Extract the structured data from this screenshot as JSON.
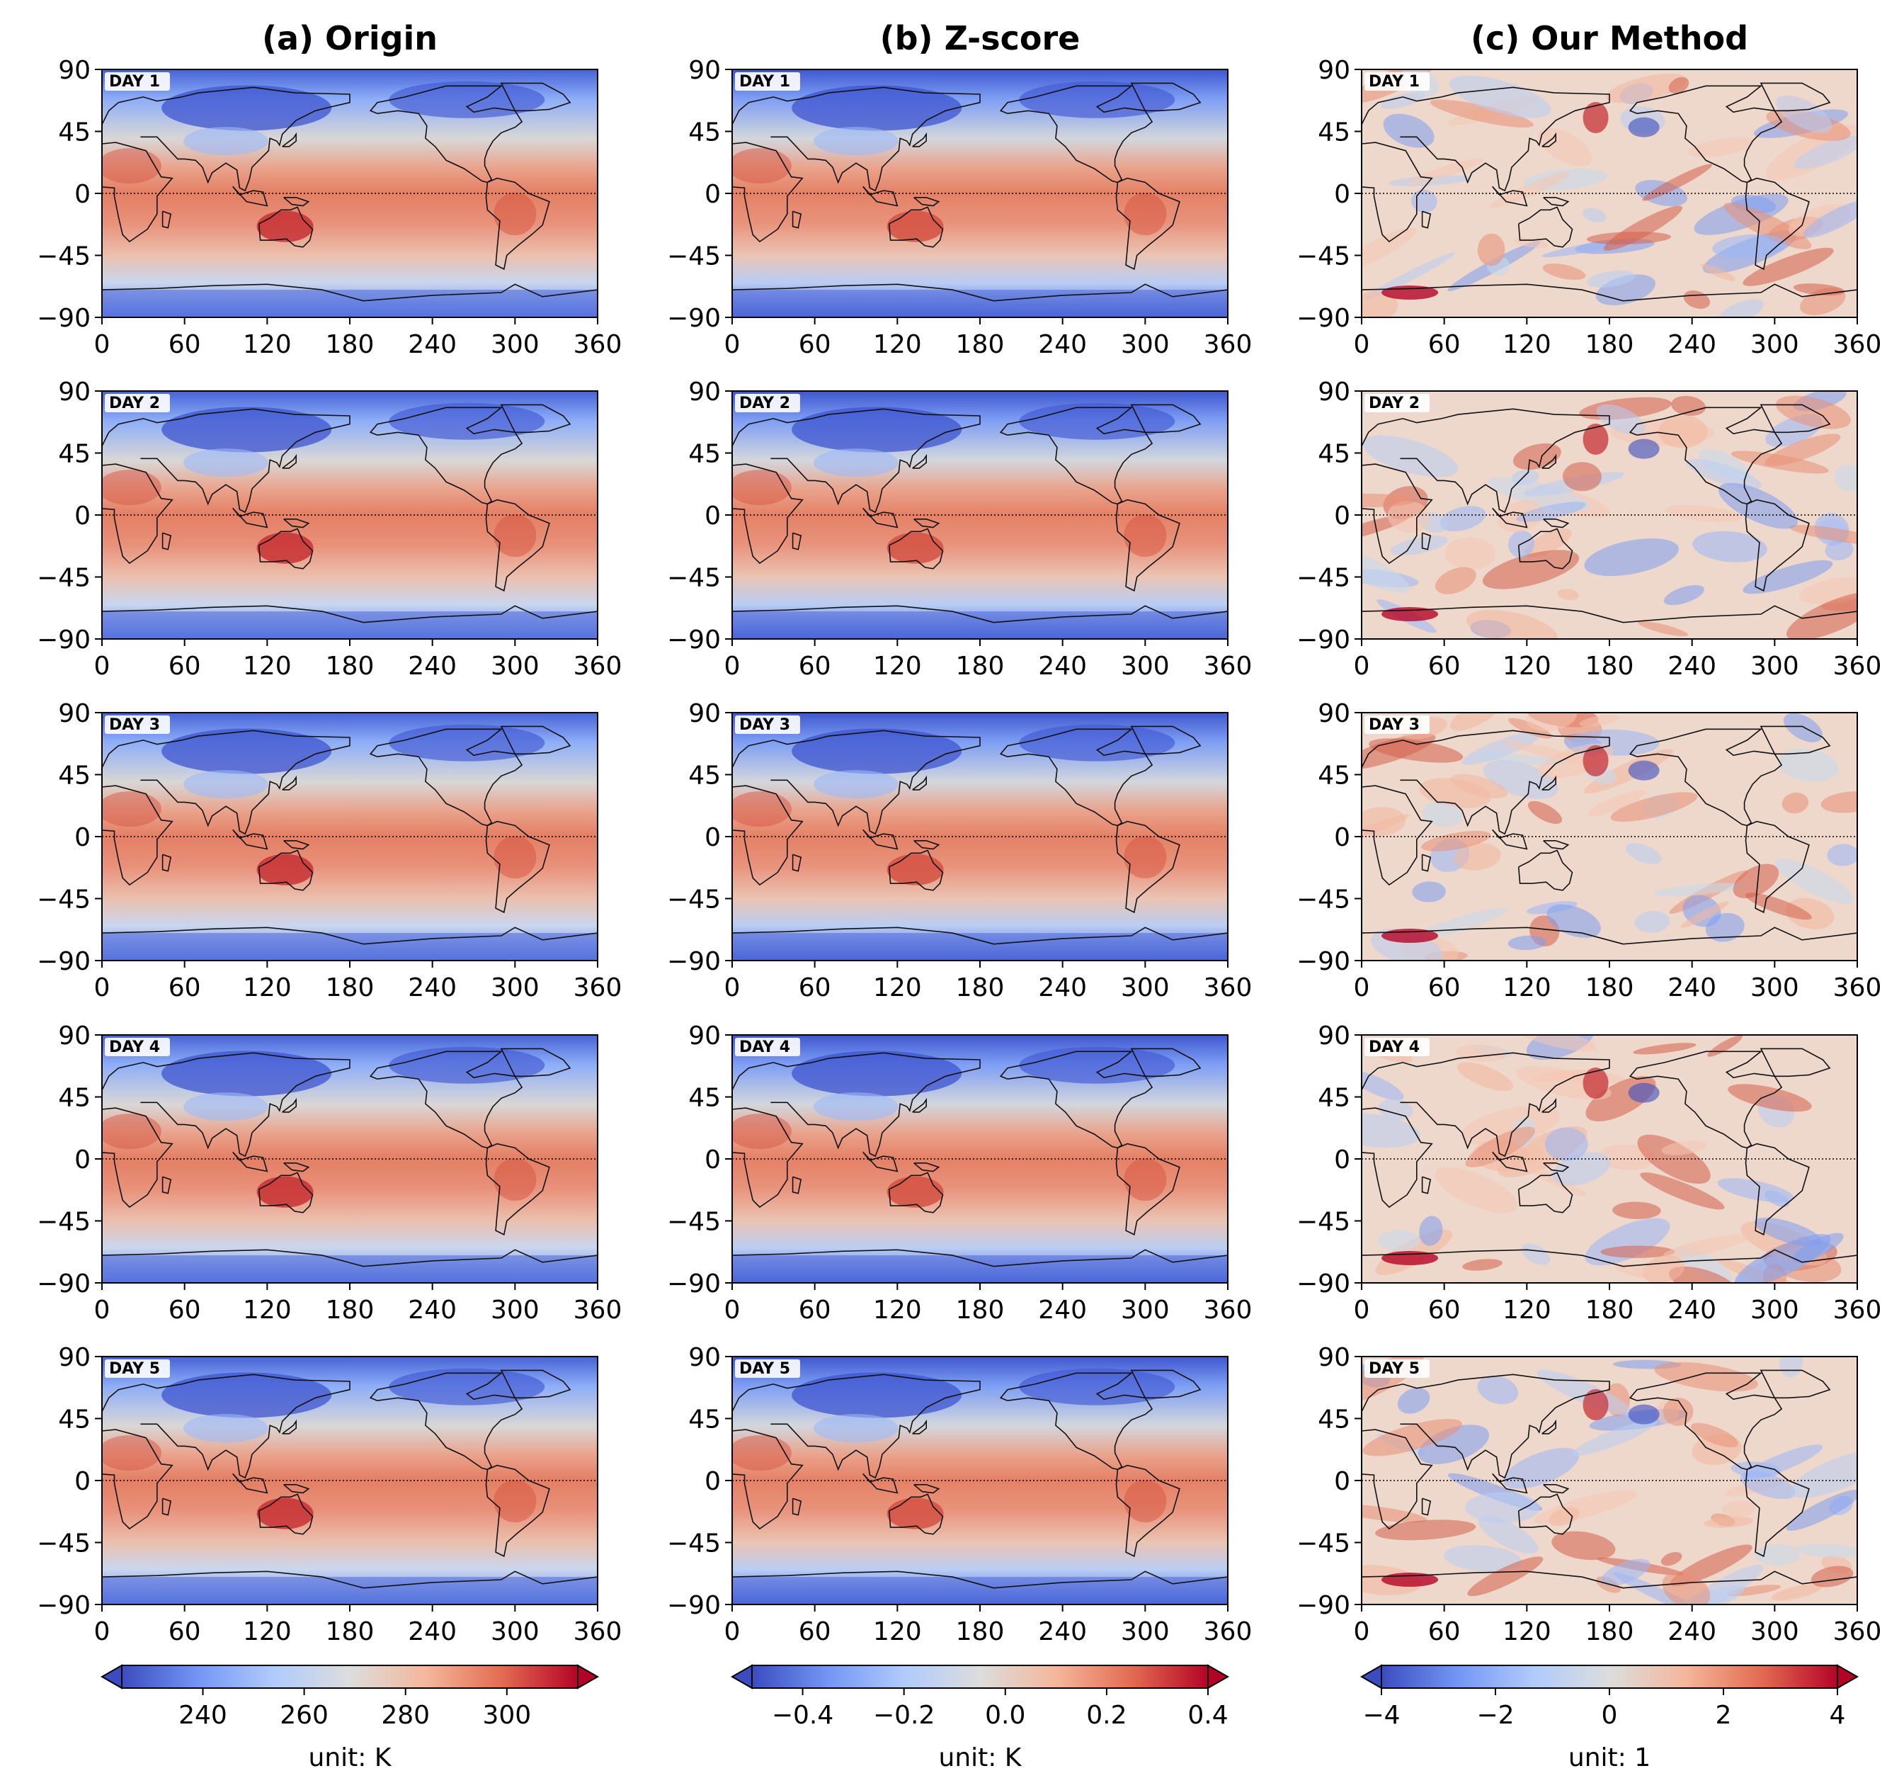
{
  "columns": [
    {
      "title": "(a) Origin",
      "colorbar": {
        "ticks": [
          240,
          260,
          280,
          300
        ],
        "tick_labels": [
          "240",
          "260",
          "280",
          "300"
        ],
        "vmin": 224,
        "vmax": 314,
        "label": "unit: K"
      }
    },
    {
      "title": "(b) Z-score",
      "colorbar": {
        "ticks": [
          -0.4,
          -0.2,
          0.0,
          0.2,
          0.4
        ],
        "tick_labels": [
          "−0.4",
          "−0.2",
          "0.0",
          "0.2",
          "0.4"
        ],
        "vmin": -0.5,
        "vmax": 0.4,
        "label": "unit: K"
      }
    },
    {
      "title": "(c) Our Method",
      "colorbar": {
        "ticks": [
          -4,
          -2,
          0,
          2,
          4
        ],
        "tick_labels": [
          "−4",
          "−2",
          "0",
          "2",
          "4"
        ],
        "vmin": -4.0,
        "vmax": 4.0,
        "label": "unit: 1"
      }
    }
  ],
  "rows": [
    {
      "label": "DAY 1"
    },
    {
      "label": "DAY 2"
    },
    {
      "label": "DAY 3"
    },
    {
      "label": "DAY 4"
    },
    {
      "label": "DAY 5"
    }
  ],
  "chart_data": {
    "type": "heatmap",
    "description_panels": "3 columns x 5 rows of global maps",
    "x": {
      "ticks": [
        0,
        60,
        120,
        180,
        240,
        300,
        360
      ],
      "tick_labels": [
        "0",
        "60",
        "120",
        "180",
        "240",
        "300",
        "360"
      ],
      "range": [
        0,
        360
      ]
    },
    "y": {
      "ticks": [
        90,
        45,
        0,
        -45,
        -90
      ],
      "tick_labels": [
        "90",
        "45",
        "0",
        "−45",
        "−90"
      ],
      "range": [
        -90,
        90
      ]
    },
    "colormap": "coolwarm",
    "colormap_stops": [
      "#3b4cc0",
      "#7396f5",
      "#b0cbfc",
      "#dcdddd",
      "#f5b79b",
      "#e36b51",
      "#b40426"
    ],
    "colorbar_extend": "both",
    "equator_line": "dotted"
  }
}
